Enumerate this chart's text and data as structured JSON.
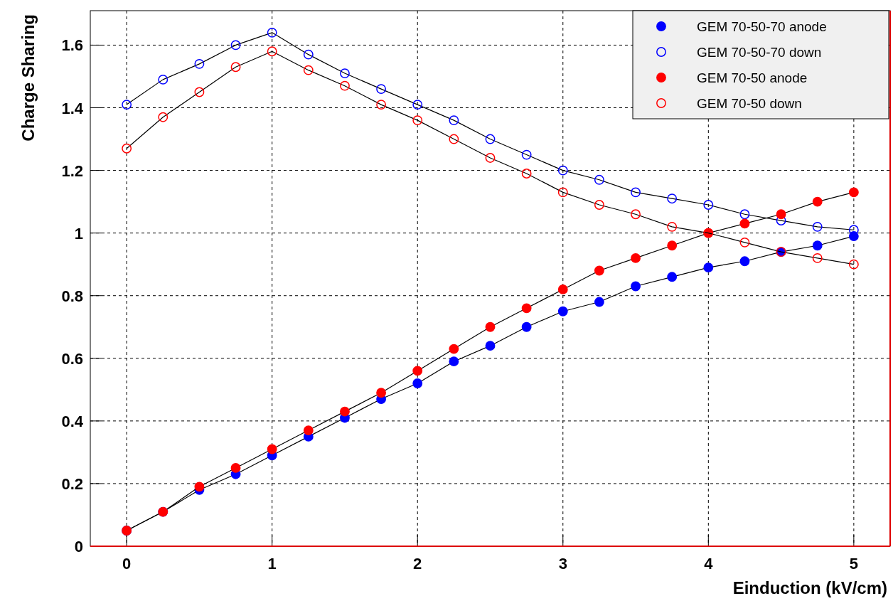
{
  "chart_data": {
    "type": "line",
    "xlabel": "Einduction (kV/cm)",
    "ylabel": "Charge Sharing",
    "x": [
      0,
      0.25,
      0.5,
      0.75,
      1,
      1.25,
      1.5,
      1.75,
      2,
      2.25,
      2.5,
      2.75,
      3,
      3.25,
      3.5,
      3.75,
      4,
      4.25,
      4.5,
      4.75,
      5
    ],
    "series": [
      {
        "name": "GEM 70-50-70 anode",
        "color": "#0000ff",
        "marker": "circle",
        "values": [
          0.05,
          0.11,
          0.18,
          0.23,
          0.29,
          0.35,
          0.41,
          0.47,
          0.52,
          0.59,
          0.64,
          0.7,
          0.75,
          0.78,
          0.83,
          0.86,
          0.89,
          0.91,
          0.94,
          0.96,
          0.99
        ]
      },
      {
        "name": "GEM 70-50-70 down",
        "color": "#0000ff",
        "marker": "open circle",
        "values": [
          1.41,
          1.49,
          1.54,
          1.6,
          1.64,
          1.57,
          1.51,
          1.46,
          1.41,
          1.36,
          1.3,
          1.25,
          1.2,
          1.17,
          1.13,
          1.11,
          1.09,
          1.06,
          1.04,
          1.02,
          1.01
        ]
      },
      {
        "name": "GEM 70-50 anode",
        "color": "#ff0000",
        "marker": "circle",
        "values": [
          0.05,
          0.11,
          0.19,
          0.25,
          0.31,
          0.37,
          0.43,
          0.49,
          0.56,
          0.63,
          0.7,
          0.76,
          0.82,
          0.88,
          0.92,
          0.96,
          1.0,
          1.03,
          1.06,
          1.1,
          1.13
        ]
      },
      {
        "name": "GEM 70-50 down",
        "color": "#ff0000",
        "marker": "open circle",
        "values": [
          1.27,
          1.37,
          1.45,
          1.53,
          1.58,
          1.52,
          1.47,
          1.41,
          1.36,
          1.3,
          1.24,
          1.19,
          1.13,
          1.09,
          1.06,
          1.02,
          1.0,
          0.97,
          0.94,
          0.92,
          0.9
        ]
      }
    ],
    "xlim": [
      -0.25,
      5.25
    ],
    "xticks": [
      0,
      1,
      2,
      3,
      4,
      5
    ],
    "ylim": [
      0,
      1.71
    ],
    "yticks": [
      0,
      0.2,
      0.4,
      0.6,
      0.8,
      1,
      1.2,
      1.4,
      1.6
    ],
    "grid": true,
    "legend": "top right",
    "marker": "circle"
  }
}
